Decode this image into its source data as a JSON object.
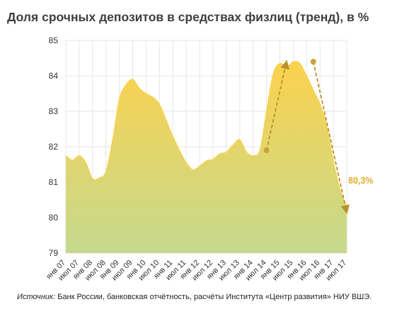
{
  "chart_data": {
    "type": "area",
    "title": "Доля срочных депозитов в средствах физлиц (тренд), в %",
    "ylim": [
      79,
      85
    ],
    "y_ticks": [
      "79",
      "80",
      "81",
      "82",
      "83",
      "84",
      "85"
    ],
    "x_tick_labels": [
      "янв 07",
      "июл 07",
      "янв 08",
      "июл 08",
      "янв 09",
      "июл 09",
      "янв 10",
      "июл 10",
      "янв 11",
      "июл 11",
      "янв 12",
      "июл 12",
      "янв 13",
      "июл 13",
      "янв 14",
      "июл 14",
      "янв 15",
      "июл 15",
      "янв 16",
      "июл 16",
      "янв 17",
      "июл 17"
    ],
    "grid": true,
    "series": [
      {
        "x": [
          "янв 07",
          "апр 07",
          "июл 07",
          "окт 07",
          "янв 08",
          "апр 08",
          "июл 08",
          "окт 08",
          "янв 09",
          "апр 09",
          "июл 09",
          "окт 09",
          "янв 10",
          "апр 10",
          "июл 10",
          "окт 10",
          "янв 11",
          "апр 11",
          "июл 11",
          "окт 11",
          "янв 12",
          "апр 12",
          "июл 12",
          "окт 12",
          "янв 13",
          "апр 13",
          "июл 13",
          "окт 13",
          "янв 14",
          "апр 14",
          "июл 14",
          "окт 14",
          "янв 15",
          "апр 15",
          "июл 15",
          "окт 15",
          "янв 16",
          "апр 16",
          "июл 16",
          "окт 16",
          "янв 17",
          "апр 17",
          "июл 17"
        ],
        "values": [
          81.75,
          81.62,
          81.75,
          81.55,
          81.1,
          81.12,
          81.3,
          82.2,
          83.35,
          83.75,
          83.9,
          83.65,
          83.5,
          83.4,
          83.2,
          82.75,
          82.3,
          81.9,
          81.55,
          81.35,
          81.45,
          81.6,
          81.65,
          81.8,
          81.85,
          82.05,
          82.2,
          81.85,
          81.75,
          81.9,
          83.0,
          84.05,
          84.35,
          84.25,
          84.4,
          84.35,
          84.0,
          83.6,
          83.2,
          82.6,
          81.6,
          80.8,
          80.3
        ]
      }
    ],
    "annotations": {
      "markers": [
        {
          "x": "июл 14",
          "y": 81.9
        },
        {
          "x": "апр 16",
          "y": 84.4
        }
      ],
      "arrows": [
        {
          "from": {
            "x": "июл 14",
            "y": 81.9
          },
          "to": {
            "x": "апр 15",
            "y": 84.4
          }
        },
        {
          "from": {
            "x": "апр 16",
            "y": 84.4
          },
          "to": {
            "x": "июл 17",
            "y": 80.15
          }
        }
      ],
      "value_label": {
        "text": "80,3%",
        "x": "июл 17",
        "y": 80.3
      }
    },
    "colors": {
      "fill_top": "#fbd24e",
      "fill_bottom": "#c5d98f",
      "marker": "#c9a23a",
      "arrow": "#b8932a",
      "value_label": "#e0ad2b",
      "grid": "#e6e6e6",
      "axis_text": "#333333"
    }
  },
  "source": {
    "label": "Источник:",
    "text": " Банк России, банковская отчётность, расчёты Института «Центр развития» НИУ ВШЭ."
  }
}
